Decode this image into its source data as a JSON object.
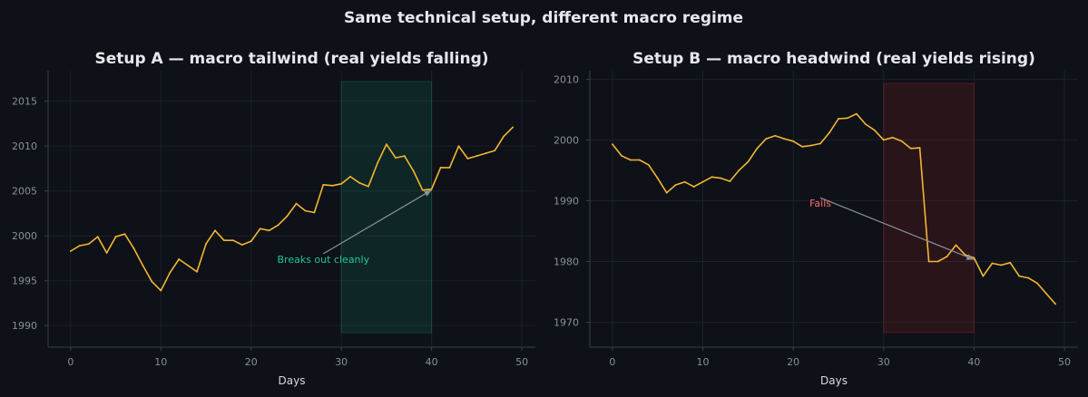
{
  "suptitle": "Same technical setup, different macro regime",
  "chart_data": [
    {
      "type": "line",
      "title": "Setup A — macro tailwind (real yields falling)",
      "xlabel": "Days",
      "ylabel": "",
      "xlim": [
        -2.5,
        51.5
      ],
      "ylim": [
        1987.6,
        2018.4
      ],
      "xticks": [
        0,
        10,
        20,
        30,
        40,
        50
      ],
      "yticks": [
        1990,
        1995,
        2000,
        2005,
        2010,
        2015
      ],
      "grid": true,
      "shade": {
        "x0": 30,
        "x1": 40,
        "color": "#12b886",
        "y0": 1989.2,
        "y1": 2017.2
      },
      "annotation": {
        "text": "Breaks out cleanly",
        "color": "#20c997",
        "xy": [
          40,
          2005.1
        ],
        "xytext": [
          28,
          1997
        ]
      },
      "series": [
        {
          "color": "#f2b632",
          "x": [
            0,
            1,
            2,
            3,
            4,
            5,
            6,
            7,
            8,
            9,
            10,
            11,
            12,
            13,
            14,
            15,
            16,
            17,
            18,
            19,
            20,
            21,
            22,
            23,
            24,
            25,
            26,
            27,
            28,
            29,
            30,
            31,
            32,
            33,
            34,
            35,
            36,
            37,
            38,
            39,
            40,
            41,
            42,
            43,
            44,
            45,
            46,
            47,
            48,
            49
          ],
          "values": [
            1998.3,
            1998.9,
            1999.1,
            1999.9,
            1998.1,
            1999.9,
            2000.2,
            1998.6,
            1996.7,
            1994.9,
            1993.9,
            1995.9,
            1997.4,
            1996.7,
            1996.0,
            1999.1,
            2000.6,
            1999.5,
            1999.5,
            1999.0,
            1999.4,
            2000.8,
            2000.6,
            2001.2,
            2002.2,
            2003.6,
            2002.8,
            2002.6,
            2005.7,
            2005.6,
            2005.8,
            2006.6,
            2005.9,
            2005.5,
            2008.1,
            2010.2,
            2008.7,
            2008.9,
            2007.2,
            2005.1,
            2005.2,
            2007.6,
            2007.6,
            2010.0,
            2008.6,
            2008.9,
            2009.2,
            2009.5,
            2011.1,
            2012.1
          ]
        }
      ]
    },
    {
      "type": "line",
      "title": "Setup B — macro headwind (real yields rising)",
      "xlabel": "Days",
      "ylabel": "",
      "xlim": [
        -2.5,
        51.5
      ],
      "ylim": [
        1965.9,
        2011.4
      ],
      "xticks": [
        0,
        10,
        20,
        30,
        40,
        50
      ],
      "yticks": [
        1970,
        1980,
        1990,
        2000,
        2010
      ],
      "grid": true,
      "shade": {
        "x0": 30,
        "x1": 40,
        "color": "#e03131",
        "y0": 1968.3,
        "y1": 2009.3
      },
      "annotation": {
        "text": "Fails",
        "color": "#ff6b6b",
        "xy": [
          40,
          1980.3
        ],
        "xytext": [
          23,
          1989
        ]
      },
      "series": [
        {
          "color": "#f2b632",
          "x": [
            0,
            1,
            2,
            3,
            4,
            5,
            6,
            7,
            8,
            9,
            10,
            11,
            12,
            13,
            14,
            15,
            16,
            17,
            18,
            19,
            20,
            21,
            22,
            23,
            24,
            25,
            26,
            27,
            28,
            29,
            30,
            31,
            32,
            33,
            34,
            35,
            36,
            37,
            38,
            39,
            40,
            41,
            42,
            43,
            44,
            45,
            46,
            47,
            48,
            49
          ],
          "values": [
            1999.3,
            1997.4,
            1996.7,
            1996.7,
            1995.9,
            1993.7,
            1991.3,
            1992.6,
            1993.1,
            1992.3,
            1993.1,
            1993.9,
            1993.7,
            1993.2,
            1995.0,
            1996.4,
            1998.6,
            2000.2,
            2000.7,
            2000.2,
            1999.8,
            1998.9,
            1999.1,
            1999.4,
            2001.2,
            2003.5,
            2003.6,
            2004.3,
            2002.6,
            2001.6,
            2000.0,
            2000.4,
            1999.8,
            1998.6,
            1998.7,
            1980.0,
            1980.0,
            1980.8,
            1982.7,
            1981.1,
            1980.6,
            1977.6,
            1979.7,
            1979.4,
            1979.8,
            1977.6,
            1977.3,
            1976.4,
            1974.7,
            1973.0
          ]
        }
      ]
    }
  ]
}
